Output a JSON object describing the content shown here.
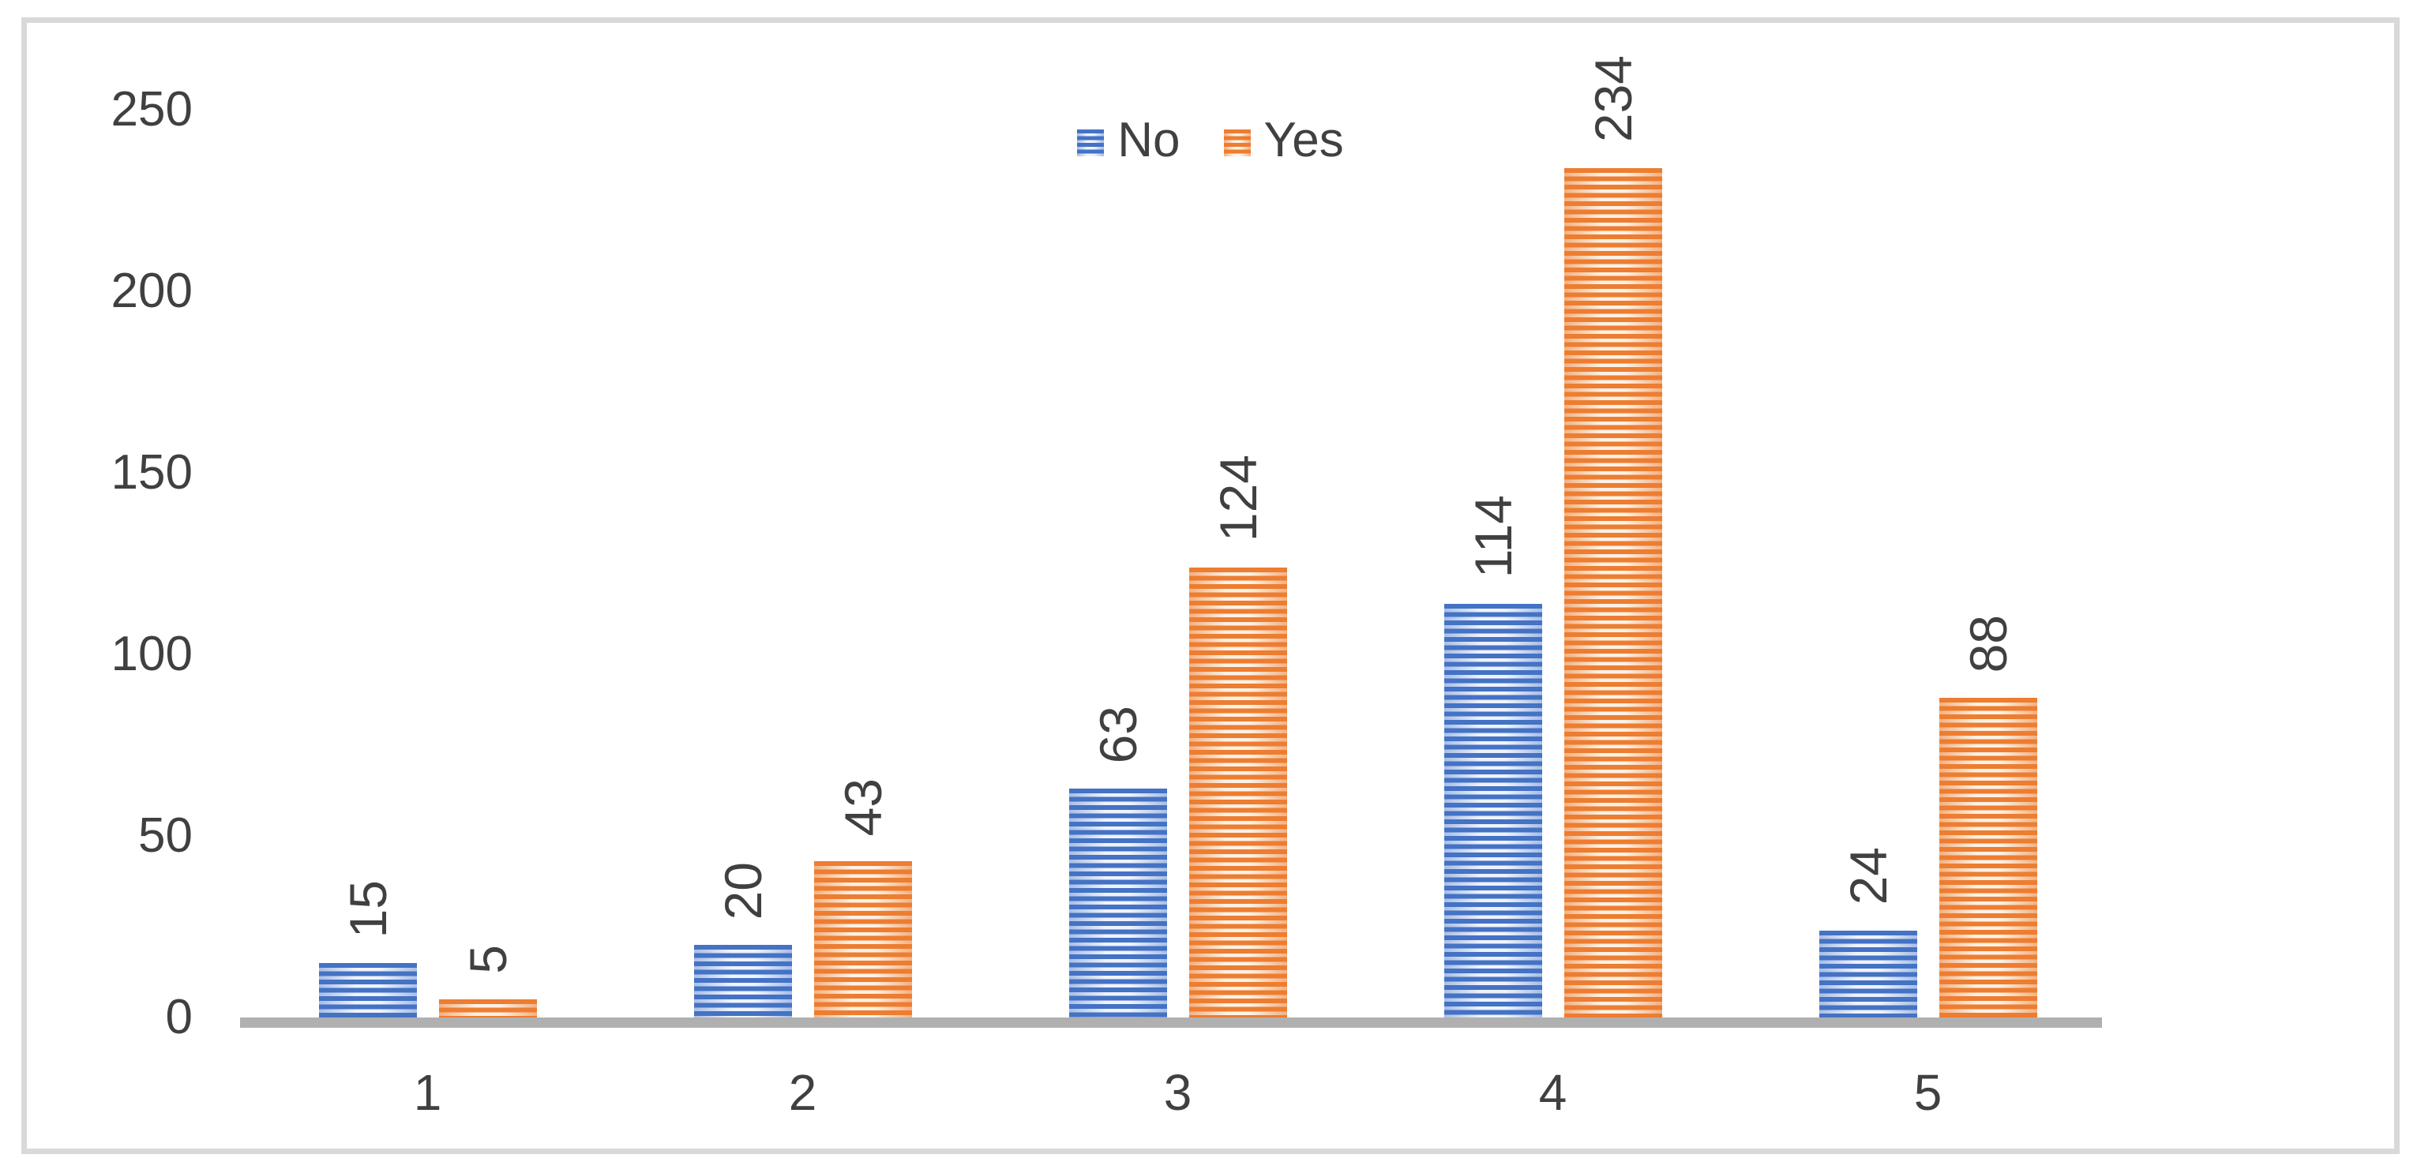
{
  "window": {
    "background": "#FFFFFF",
    "frame_border_color": "#D9D9D9"
  },
  "colors": {
    "text": "#404040",
    "axis_line": "#B0B0B0"
  },
  "legend": {
    "position": "top-center",
    "items": [
      "No",
      "Yes"
    ]
  },
  "chart_data": {
    "type": "bar",
    "title": "",
    "xlabel": "",
    "ylabel": "",
    "categories": [
      "1",
      "2",
      "3",
      "4",
      "5"
    ],
    "series": [
      {
        "name": "No",
        "values": [
          15,
          20,
          63,
          114,
          24
        ],
        "color": "#4472C4",
        "fill_pattern": "horizontal-stripes",
        "pattern": {
          "stripe": "#4472C4",
          "light_mid": "#EFF3FB",
          "light_edge": "#A8BEE5"
        }
      },
      {
        "name": "Yes",
        "values": [
          5,
          43,
          124,
          234,
          88
        ],
        "color": "#ED7D31",
        "fill_pattern": "horizontal-stripes",
        "pattern": {
          "stripe": "#ED7D31",
          "light_mid": "#FDF2E6",
          "light_edge": "#F2B183"
        }
      }
    ],
    "ylim": [
      0,
      250
    ],
    "yticks": [
      0,
      50,
      100,
      150,
      200,
      250
    ],
    "grid": false,
    "legend_position": "top-center",
    "data_labels": {
      "show": true,
      "rotation": -90,
      "position": "outside-end"
    }
  }
}
